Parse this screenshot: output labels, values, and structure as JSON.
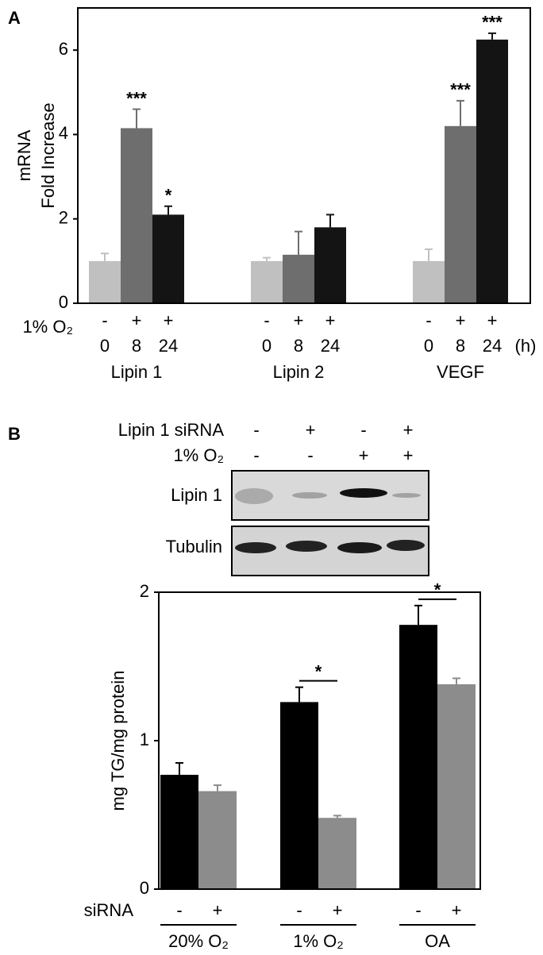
{
  "chart_data": [
    {
      "type": "bar",
      "panel": "A",
      "ylabel": [
        "mRNA",
        "Fold Increase"
      ],
      "categories": [
        "Lipin 1",
        "Lipin 2",
        "VEGF"
      ],
      "row_label": "1% O₂",
      "unit": "(h)",
      "series": [
        {
          "name": "0",
          "sign": "-",
          "color": "#c0c0c0",
          "values": [
            1,
            1,
            1
          ],
          "errors": [
            0.18,
            0.08,
            0.28
          ],
          "annotations": [
            null,
            null,
            null
          ]
        },
        {
          "name": "8",
          "sign": "+",
          "color": "#6e6e6e",
          "values": [
            4.15,
            1.15,
            4.2
          ],
          "errors": [
            0.45,
            0.55,
            0.6
          ],
          "annotations": [
            "***",
            null,
            "***"
          ]
        },
        {
          "name": "24",
          "sign": "+",
          "color": "#141414",
          "values": [
            2.1,
            1.8,
            6.25
          ],
          "errors": [
            0.2,
            0.3,
            0.15
          ],
          "annotations": [
            "*",
            null,
            "***"
          ]
        }
      ],
      "ylim": [
        0,
        7
      ],
      "yticks": [
        0,
        2,
        4,
        6
      ]
    },
    {
      "type": "bar",
      "panel": "B",
      "ylabel": [
        "mg TG/mg protein"
      ],
      "blot": {
        "rows": [
          {
            "label": "Lipin 1 siRNA",
            "signs": [
              "-",
              "+",
              "-",
              "+"
            ]
          },
          {
            "label": "1% O₂",
            "signs": [
              "-",
              "-",
              "+",
              "+"
            ]
          }
        ],
        "bands": [
          "Lipin 1",
          "Tubulin"
        ]
      },
      "categories": [
        "20% O₂",
        "1% O₂",
        "OA"
      ],
      "row_label": "siRNA",
      "series": [
        {
          "name": "-",
          "color": "#000000",
          "values": [
            0.77,
            1.26,
            1.78
          ],
          "errors": [
            0.08,
            0.1,
            0.13
          ]
        },
        {
          "name": "+",
          "color": "#8c8c8c",
          "values": [
            0.66,
            0.48,
            1.38
          ],
          "errors": [
            0.04,
            0.015,
            0.04
          ]
        }
      ],
      "significance": [
        null,
        "*",
        "*"
      ],
      "ylim": [
        0,
        2
      ],
      "yticks": [
        0,
        1,
        2
      ]
    }
  ]
}
